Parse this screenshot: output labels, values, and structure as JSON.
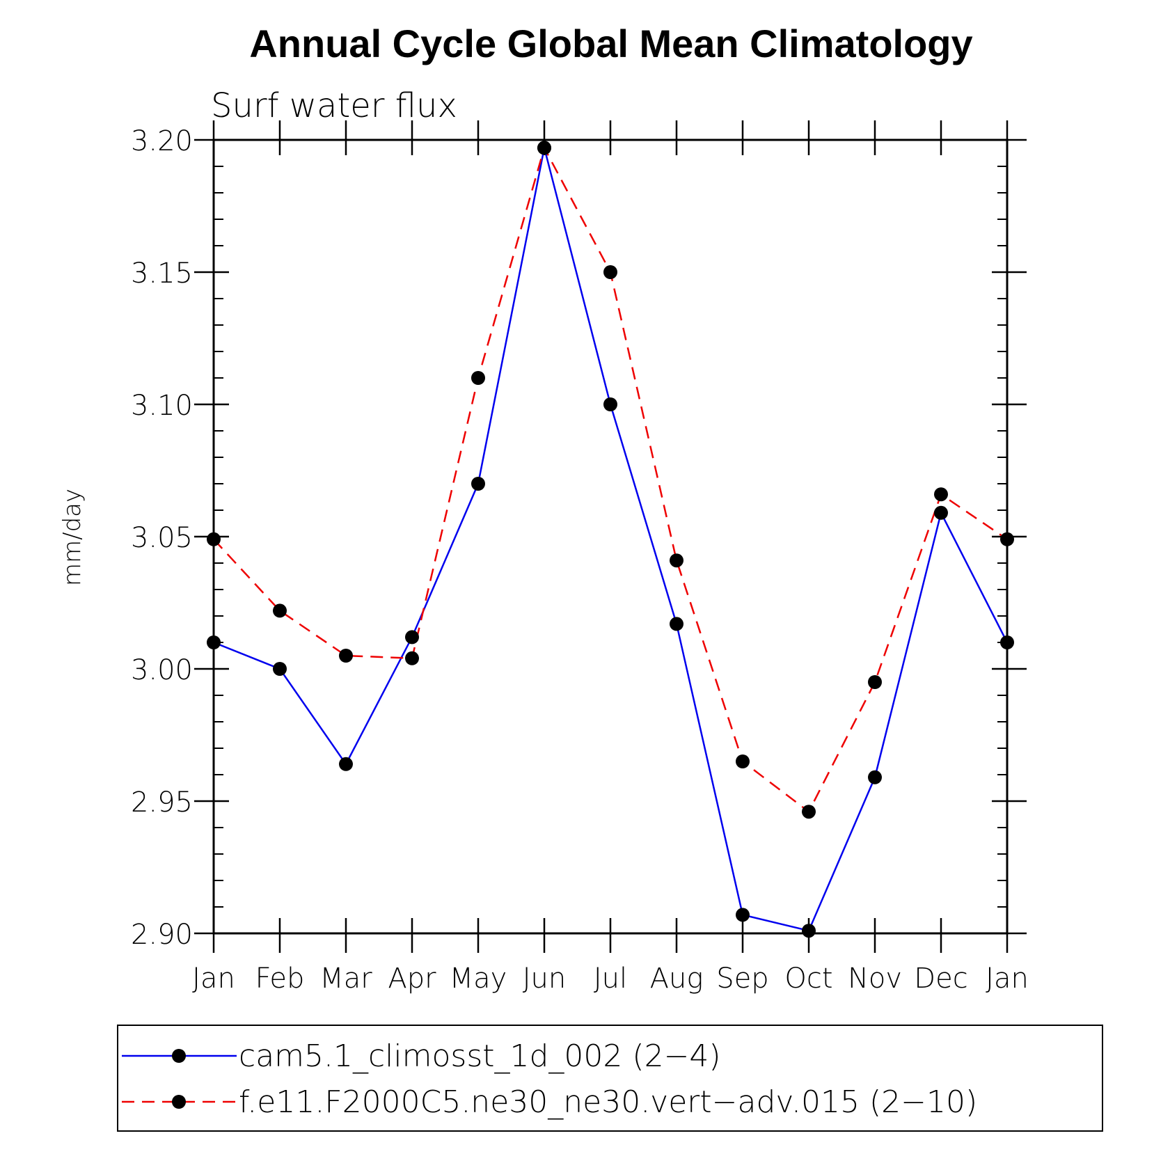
{
  "chart_data": {
    "type": "line",
    "title": "Annual Cycle Global Mean Climatology",
    "subtitle": "Surf water flux",
    "xlabel": "",
    "ylabel": "mm/day",
    "categories": [
      "Jan",
      "Feb",
      "Mar",
      "Apr",
      "May",
      "Jun",
      "Jul",
      "Aug",
      "Sep",
      "Oct",
      "Nov",
      "Dec",
      "Jan"
    ],
    "ylim": [
      2.9,
      3.2
    ],
    "yticks": [
      "2.90",
      "2.95",
      "3.00",
      "3.05",
      "3.10",
      "3.15",
      "3.20"
    ],
    "ytick_values": [
      2.9,
      2.95,
      3.0,
      3.05,
      3.1,
      3.15,
      3.2
    ],
    "grid": false,
    "legend_position": "bottom",
    "series": [
      {
        "name": "cam5.1_climosst_1d_002 (2−4)",
        "color": "#0000ee",
        "line_style": "solid",
        "marker": "filled-circle",
        "values": [
          3.01,
          3.0,
          2.964,
          3.012,
          3.07,
          3.197,
          3.1,
          3.017,
          2.907,
          2.901,
          2.959,
          3.059,
          3.01
        ]
      },
      {
        "name": "f.e11.F2000C5.ne30_ne30.vert−adv.015 (2−10)",
        "color": "#ee0000",
        "line_style": "dashed",
        "marker": "filled-circle",
        "values": [
          3.049,
          3.022,
          3.005,
          3.004,
          3.11,
          3.197,
          3.15,
          3.041,
          2.965,
          2.946,
          2.995,
          3.066,
          3.049
        ]
      }
    ]
  }
}
